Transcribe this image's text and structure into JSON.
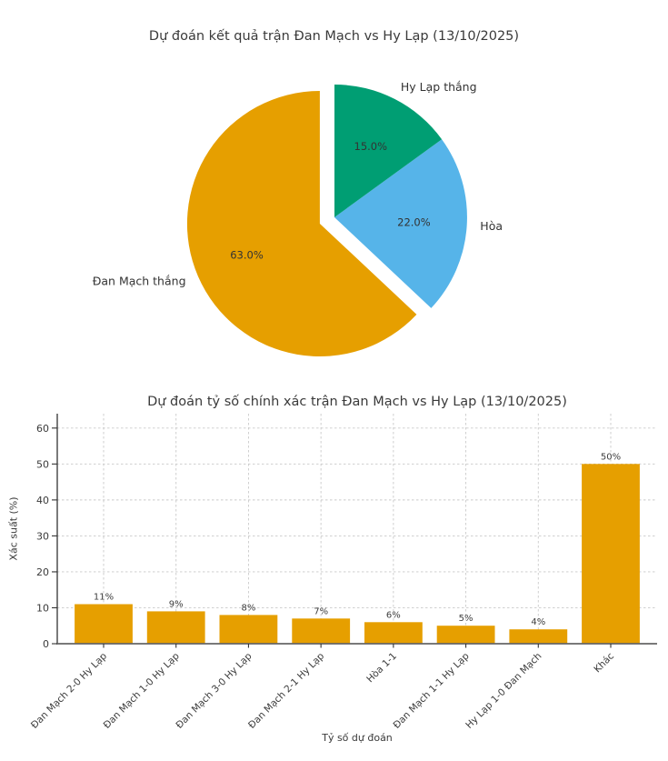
{
  "page": {
    "background": "#ffffff"
  },
  "chart_data": [
    {
      "type": "pie",
      "title": "Dự đoán kết quả trận Đan Mạch vs Hy Lạp (13/10/2025)",
      "start_angle": 90,
      "counterclockwise": true,
      "label_distance": 1.1,
      "pct_distance": 0.6,
      "slices": [
        {
          "label": "Đan Mạch thắng",
          "value": 63.0,
          "pct_label": "63.0%",
          "color": "#E69F00",
          "explode": 0.12
        },
        {
          "label": "Hòa",
          "value": 22.0,
          "pct_label": "22.0%",
          "color": "#56B4E9",
          "explode": 0
        },
        {
          "label": "Hy Lạp thắng",
          "value": 15.0,
          "pct_label": "15.0%",
          "color": "#009E73",
          "explode": 0
        }
      ]
    },
    {
      "type": "bar",
      "title": "Dự đoán tỷ số chính xác trận Đan Mạch vs Hy Lạp (13/10/2025)",
      "categories": [
        "Đan Mạch 2-0 Hy Lạp",
        "Đan Mạch 1-0 Hy Lạp",
        "Đan Mạch 3-0 Hy Lạp",
        "Đan Mạch 2-1 Hy Lạp",
        "Hòa 1-1",
        "Đan Mạch 1-1 Hy Lạp",
        "Hy Lạp 1-0 Đan Mạch",
        "Khác"
      ],
      "values": [
        11,
        9,
        8,
        7,
        6,
        5,
        4,
        50
      ],
      "bar_labels": [
        "11%",
        "9%",
        "8%",
        "7%",
        "6%",
        "5%",
        "4%",
        "50%"
      ],
      "xlabel": "Tỷ số dự đoán",
      "ylabel": "Xác suất (%)",
      "ylim": [
        0,
        64
      ],
      "yticks": [
        0,
        10,
        20,
        30,
        40,
        50,
        60
      ],
      "grid": true,
      "colors": {
        "bar": "#E69F00",
        "grid": "#c9c9c9",
        "text": "#3a3a3a",
        "spine_left": "#333333",
        "spine_bottom": "#666666"
      }
    }
  ]
}
